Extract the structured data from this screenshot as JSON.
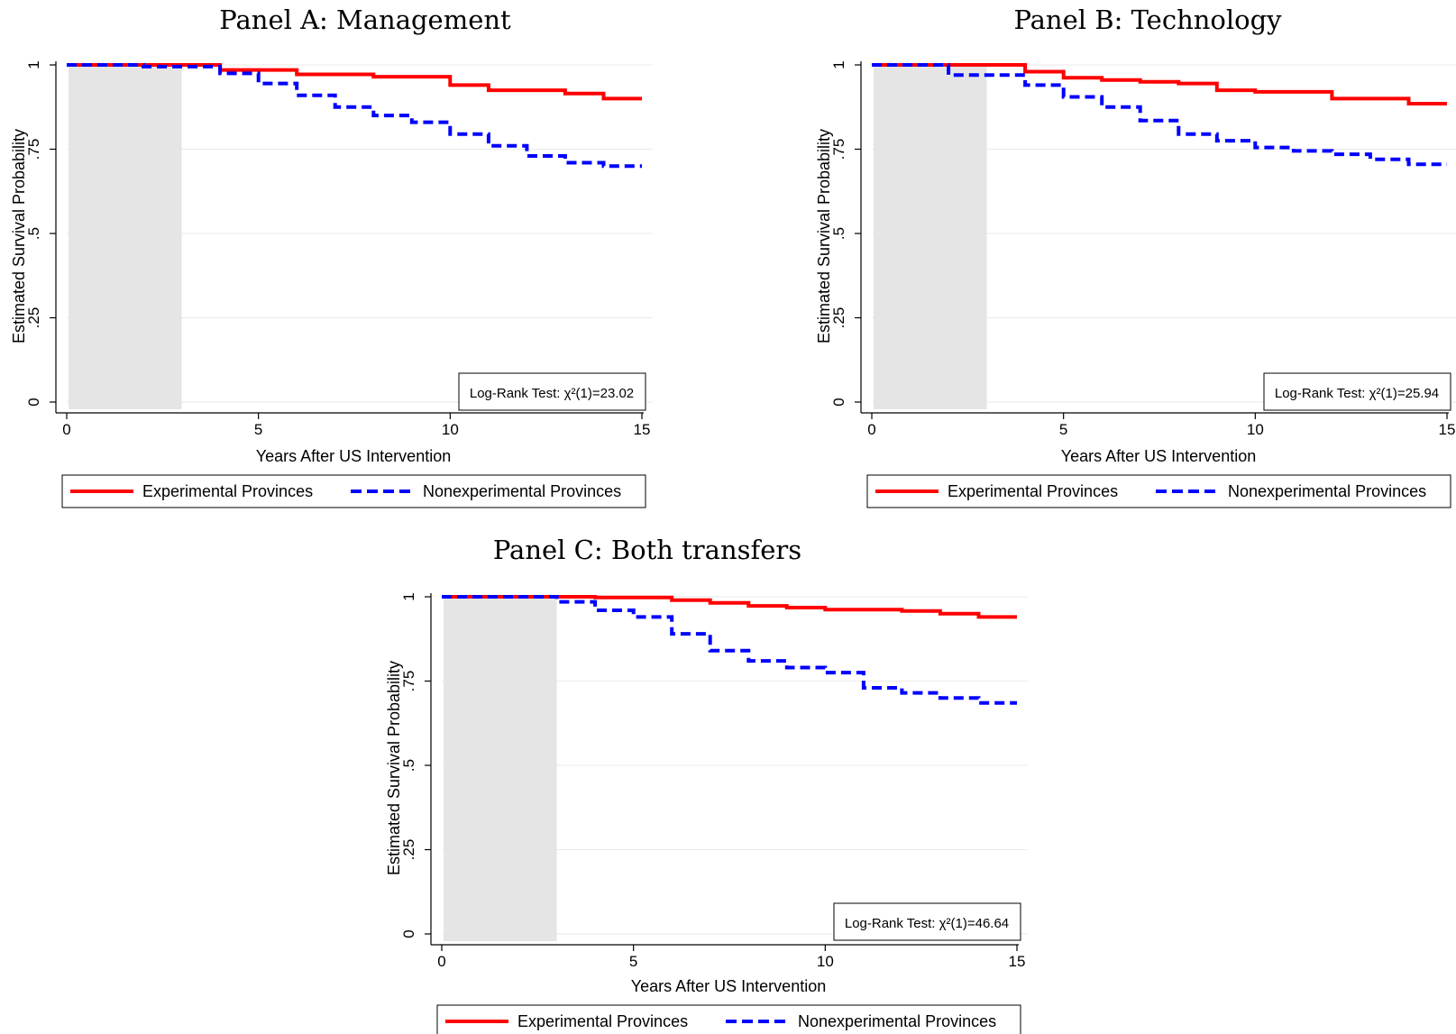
{
  "colors": {
    "experimental": "#ff0000",
    "nonexperimental": "#0000ff",
    "shade": "#e5e5e5",
    "grid": "#eaeaea"
  },
  "chart_data": [
    {
      "type": "line",
      "title": "Panel A: Management",
      "xlabel": "Years After US Intervention",
      "ylabel": "Estimated Survival Probability",
      "xlim": [
        0,
        15
      ],
      "ylim": [
        0,
        1
      ],
      "x_ticks": [
        0,
        5,
        10,
        15
      ],
      "x_tick_labels": [
        "0",
        "5",
        "10",
        "15"
      ],
      "y_ticks": [
        0,
        0.25,
        0.5,
        0.75,
        1
      ],
      "y_tick_labels": [
        "0",
        ".25",
        ".5",
        ".75",
        "1"
      ],
      "shaded_region": [
        0,
        3
      ],
      "grid": true,
      "annotation": "Log-Rank Test: χ²(1)=23.02",
      "legend_position": "bottom",
      "series": [
        {
          "name": "Experimental Provinces",
          "style": "solid",
          "x": [
            0,
            4,
            4,
            6,
            6,
            8,
            8,
            10,
            10,
            11,
            11,
            13,
            13,
            14,
            14,
            15
          ],
          "y": [
            1,
            1,
            0.985,
            0.985,
            0.972,
            0.972,
            0.965,
            0.965,
            0.94,
            0.94,
            0.925,
            0.925,
            0.915,
            0.915,
            0.9,
            0.9
          ]
        },
        {
          "name": "Nonexperimental Provinces",
          "style": "dashed",
          "x": [
            0,
            2,
            2,
            4,
            4,
            5,
            5,
            6,
            6,
            7,
            7,
            8,
            8,
            9,
            9,
            10,
            10,
            11,
            11,
            12,
            12,
            13,
            13,
            14,
            14,
            15
          ],
          "y": [
            1,
            1,
            0.995,
            0.995,
            0.975,
            0.975,
            0.945,
            0.945,
            0.91,
            0.91,
            0.875,
            0.875,
            0.85,
            0.85,
            0.83,
            0.83,
            0.795,
            0.795,
            0.76,
            0.76,
            0.73,
            0.73,
            0.71,
            0.71,
            0.7,
            0.7
          ]
        }
      ]
    },
    {
      "type": "line",
      "title": "Panel B: Technology",
      "xlabel": "Years After US Intervention",
      "ylabel": "Estimated Survival Probability",
      "xlim": [
        0,
        15
      ],
      "ylim": [
        0,
        1
      ],
      "x_ticks": [
        0,
        5,
        10,
        15
      ],
      "x_tick_labels": [
        "0",
        "5",
        "10",
        "15"
      ],
      "y_ticks": [
        0,
        0.25,
        0.5,
        0.75,
        1
      ],
      "y_tick_labels": [
        "0",
        ".25",
        ".5",
        ".75",
        "1"
      ],
      "shaded_region": [
        0,
        3
      ],
      "grid": true,
      "annotation": "Log-Rank Test: χ²(1)=25.94",
      "legend_position": "bottom",
      "series": [
        {
          "name": "Experimental Provinces",
          "style": "solid",
          "x": [
            0,
            4,
            4,
            5,
            5,
            6,
            6,
            7,
            7,
            8,
            8,
            9,
            9,
            10,
            10,
            12,
            12,
            14,
            14,
            15
          ],
          "y": [
            1,
            1,
            0.98,
            0.98,
            0.962,
            0.962,
            0.955,
            0.955,
            0.95,
            0.95,
            0.945,
            0.945,
            0.925,
            0.925,
            0.92,
            0.92,
            0.9,
            0.9,
            0.885,
            0.885
          ]
        },
        {
          "name": "Nonexperimental Provinces",
          "style": "dashed",
          "x": [
            0,
            2,
            2,
            4,
            4,
            5,
            5,
            6,
            6,
            7,
            7,
            8,
            8,
            9,
            9,
            10,
            10,
            11,
            11,
            12,
            12,
            13,
            13,
            14,
            14,
            15
          ],
          "y": [
            1,
            1,
            0.97,
            0.97,
            0.94,
            0.94,
            0.905,
            0.905,
            0.875,
            0.875,
            0.835,
            0.835,
            0.795,
            0.795,
            0.775,
            0.775,
            0.755,
            0.755,
            0.745,
            0.745,
            0.735,
            0.735,
            0.72,
            0.72,
            0.705,
            0.705
          ]
        }
      ]
    },
    {
      "type": "line",
      "title": "Panel C: Both transfers",
      "xlabel": "Years After US Intervention",
      "ylabel": "Estimated Survival Probability",
      "xlim": [
        0,
        15
      ],
      "ylim": [
        0,
        1
      ],
      "x_ticks": [
        0,
        5,
        10,
        15
      ],
      "x_tick_labels": [
        "0",
        "5",
        "10",
        "15"
      ],
      "y_ticks": [
        0,
        0.25,
        0.5,
        0.75,
        1
      ],
      "y_tick_labels": [
        "0",
        ".25",
        ".5",
        ".75",
        "1"
      ],
      "shaded_region": [
        0,
        3
      ],
      "grid": true,
      "annotation": "Log-Rank Test: χ²(1)=46.64",
      "legend_position": "bottom",
      "series": [
        {
          "name": "Experimental Provinces",
          "style": "solid",
          "x": [
            0,
            4,
            4,
            6,
            6,
            7,
            7,
            8,
            8,
            9,
            9,
            10,
            10,
            12,
            12,
            13,
            13,
            14,
            14,
            15
          ],
          "y": [
            1,
            1,
            0.998,
            0.998,
            0.99,
            0.99,
            0.982,
            0.982,
            0.973,
            0.973,
            0.968,
            0.968,
            0.962,
            0.962,
            0.958,
            0.958,
            0.95,
            0.95,
            0.94,
            0.94
          ]
        },
        {
          "name": "Nonexperimental Provinces",
          "style": "dashed",
          "x": [
            0,
            3,
            3,
            4,
            4,
            5,
            5,
            6,
            6,
            7,
            7,
            8,
            8,
            9,
            9,
            10,
            10,
            11,
            11,
            12,
            12,
            13,
            13,
            14,
            14,
            15
          ],
          "y": [
            1,
            1,
            0.985,
            0.985,
            0.96,
            0.96,
            0.94,
            0.94,
            0.89,
            0.89,
            0.84,
            0.84,
            0.81,
            0.81,
            0.79,
            0.79,
            0.775,
            0.775,
            0.73,
            0.73,
            0.715,
            0.715,
            0.7,
            0.7,
            0.685,
            0.685
          ]
        }
      ]
    }
  ]
}
